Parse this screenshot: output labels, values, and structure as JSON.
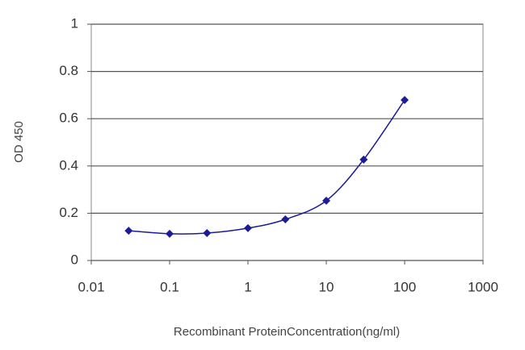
{
  "chart_data": {
    "type": "line",
    "x": [
      0.03,
      0.1,
      0.3,
      1,
      3,
      10,
      30,
      100
    ],
    "values": [
      0.126,
      0.113,
      0.116,
      0.137,
      0.174,
      0.253,
      0.427,
      0.679
    ],
    "color": "#1c1c96",
    "marker": "diamond",
    "x_label": "Recombinant ProteinConcentration(ng/ml)",
    "y_label": "OD 450",
    "xscale": "log",
    "xlim": [
      0.01,
      1000
    ],
    "xticks": [
      0.01,
      0.1,
      1,
      10,
      100,
      1000
    ],
    "ylim": [
      0,
      1
    ],
    "yticks": [
      0,
      0.2,
      0.4,
      0.6,
      0.8,
      1
    ],
    "grid": true
  }
}
